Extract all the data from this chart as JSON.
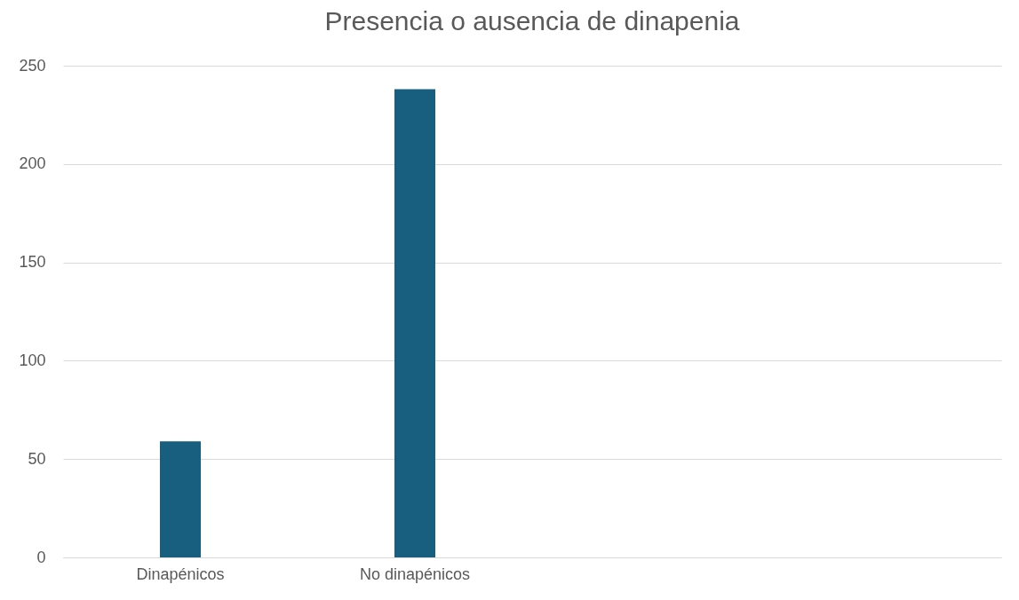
{
  "chart_data": {
    "type": "bar",
    "title": "Presencia o ausencia de dinapenia",
    "categories": [
      "Dinapénicos",
      "No dinapénicos",
      null,
      null
    ],
    "values": [
      59,
      238,
      null,
      null
    ],
    "color": "#175e7f",
    "ylim": [
      0,
      250
    ],
    "yticks": [
      0,
      50,
      100,
      150,
      200,
      250
    ],
    "grid": "y"
  }
}
